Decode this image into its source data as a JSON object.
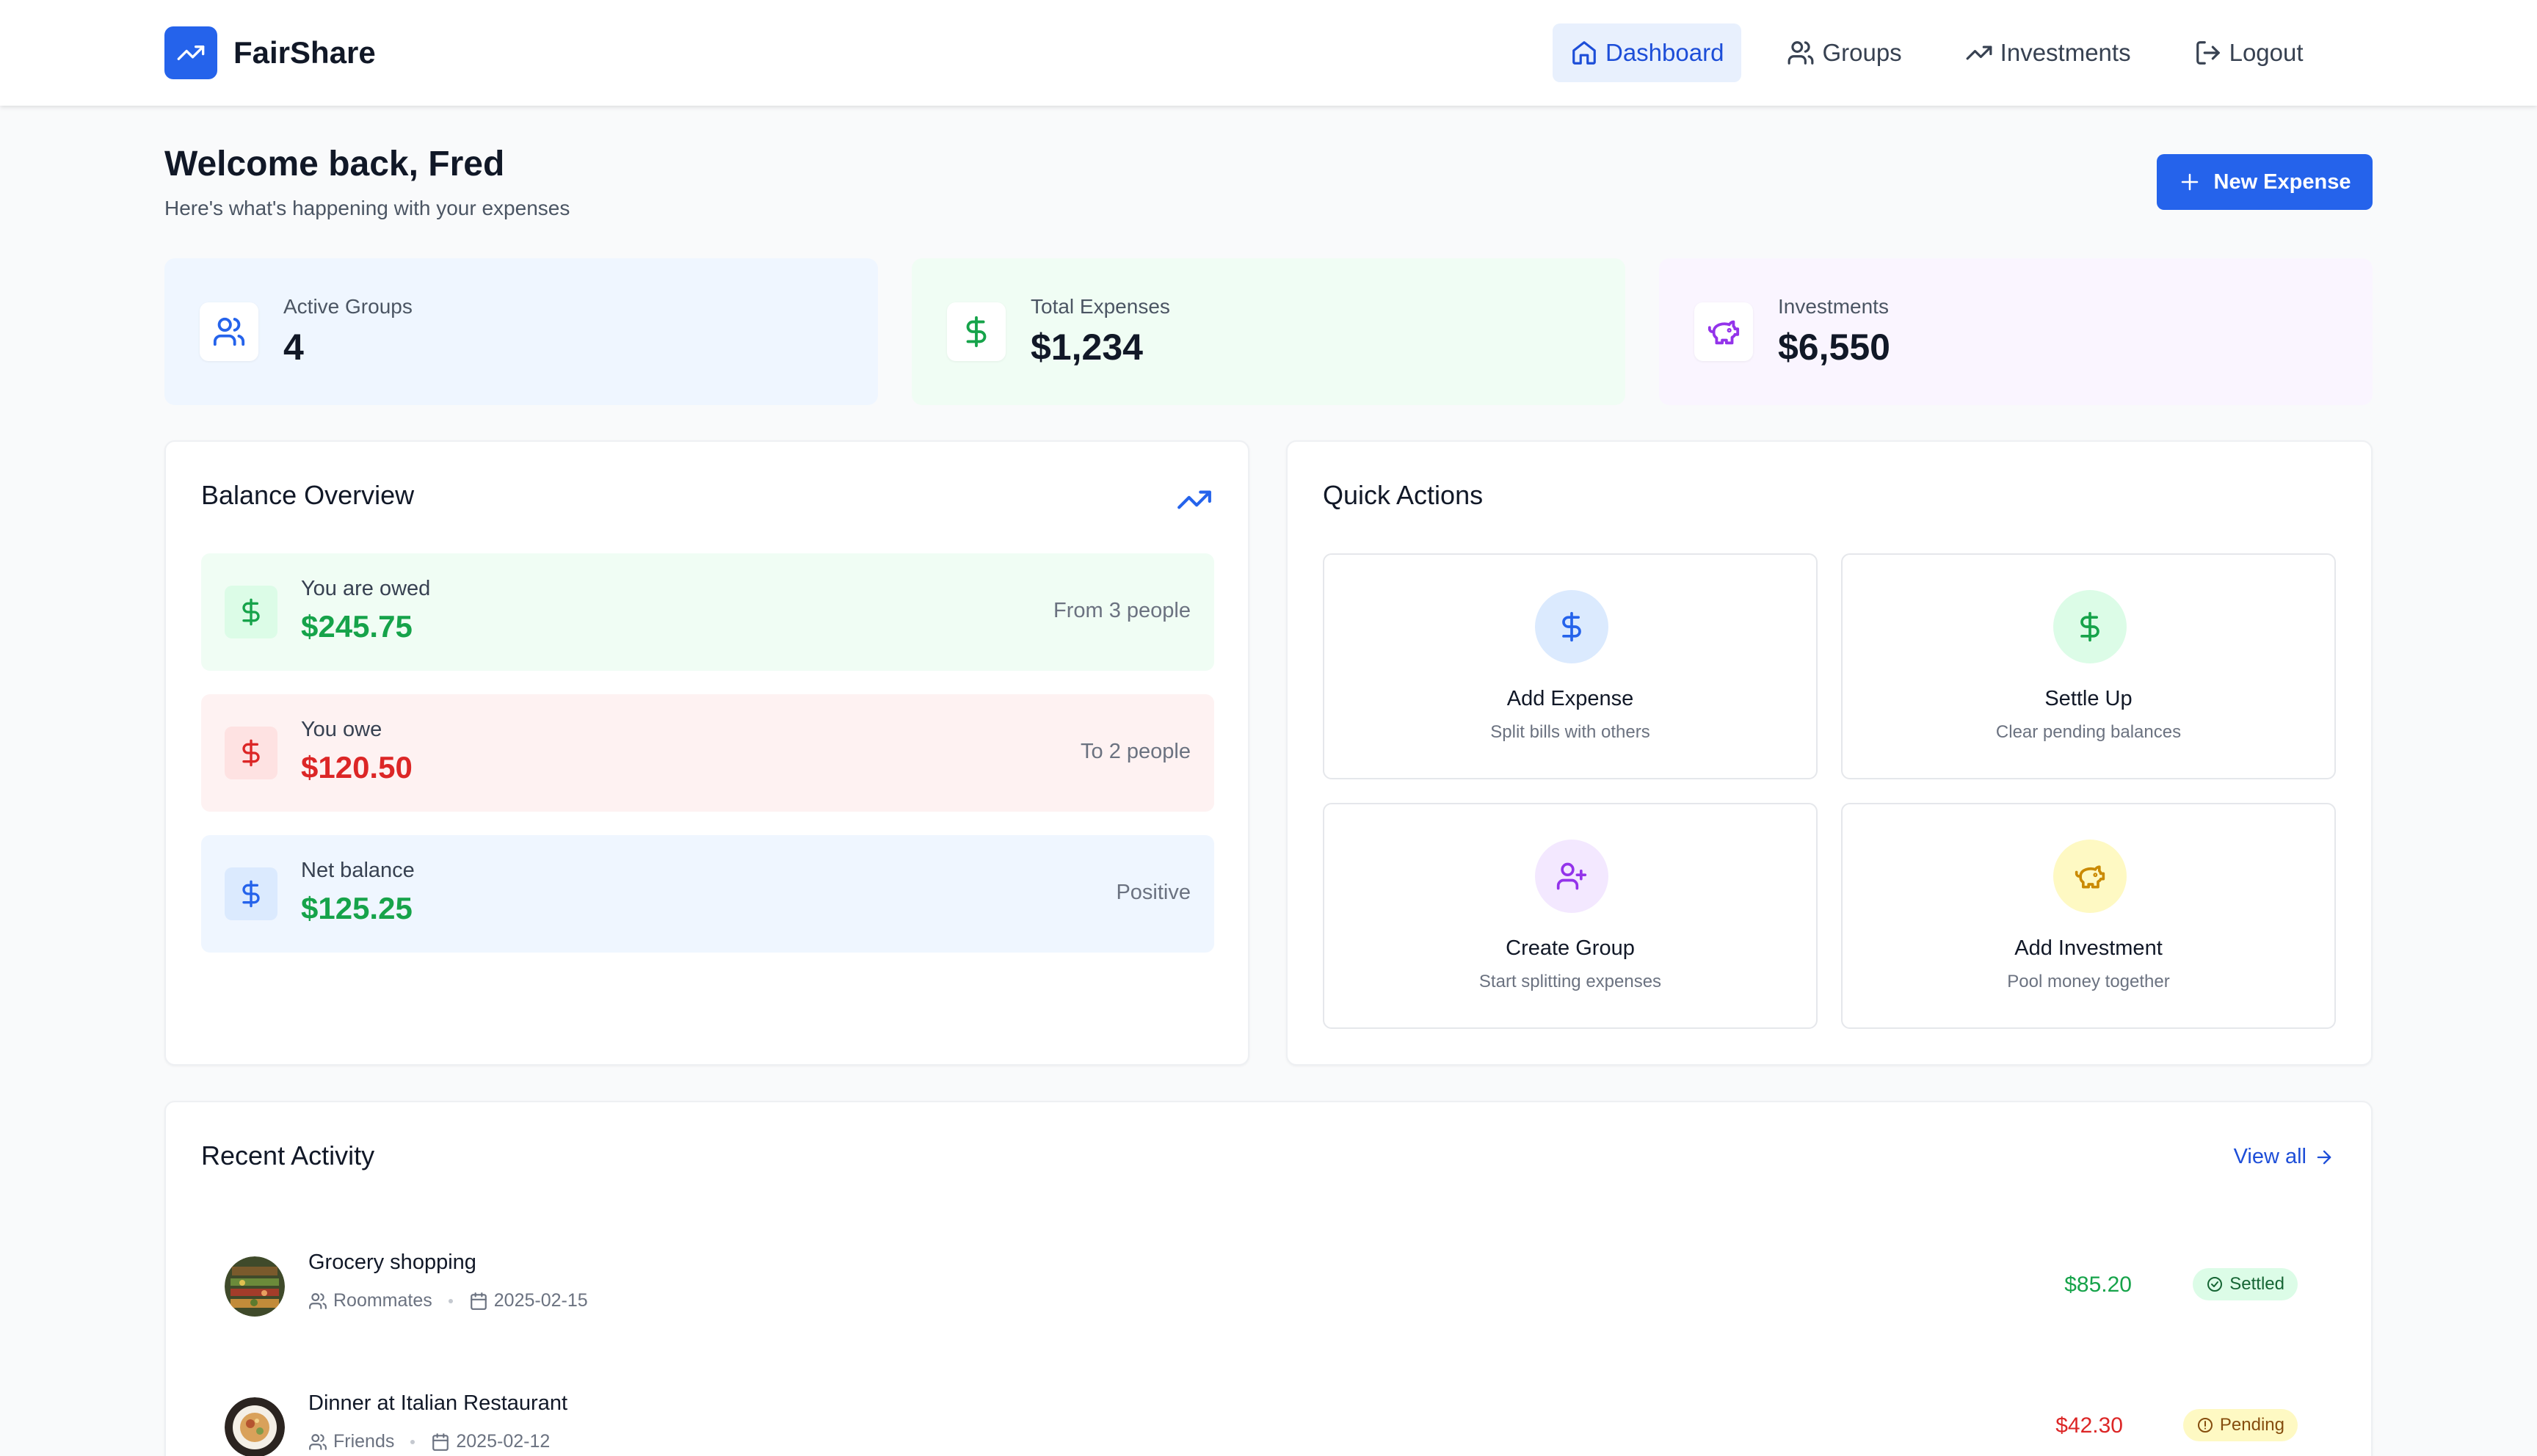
{
  "brand": {
    "name": "FairShare",
    "logo_icon": "trending-up-icon",
    "accent": "#2563eb"
  },
  "nav": [
    {
      "label": "Dashboard",
      "icon": "home-icon",
      "active": true
    },
    {
      "label": "Groups",
      "icon": "users-icon",
      "active": false
    },
    {
      "label": "Investments",
      "icon": "trending-up-icon",
      "active": false
    },
    {
      "label": "Logout",
      "icon": "logout-icon",
      "active": false
    }
  ],
  "header": {
    "title": "Welcome back, Fred",
    "subtitle": "Here's what's happening with your expenses",
    "new_expense_label": "New Expense"
  },
  "stats": [
    {
      "label": "Active Groups",
      "value": "4",
      "icon": "users-icon",
      "bg": "#eff6ff",
      "icon_color": "#2563eb"
    },
    {
      "label": "Total Expenses",
      "value": "$1,234",
      "icon": "dollar-icon",
      "bg": "#f0fdf4",
      "icon_color": "#16a34a"
    },
    {
      "label": "Investments",
      "value": "$6,550",
      "icon": "piggy-bank-icon",
      "bg": "#faf5ff",
      "icon_color": "#9333ea"
    }
  ],
  "balance": {
    "title": "Balance Overview",
    "rows": [
      {
        "label": "You are owed",
        "amount": "$245.75",
        "note": "From 3 people",
        "bg": "#f0fdf4",
        "amount_color": "#16a34a"
      },
      {
        "label": "You owe",
        "amount": "$120.50",
        "note": "To 2 people",
        "bg": "#fef2f2",
        "amount_color": "#dc2626"
      },
      {
        "label": "Net balance",
        "amount": "$125.25",
        "note": "Positive",
        "bg": "#eff6ff",
        "amount_color": "#16a34a"
      }
    ]
  },
  "quick_actions": {
    "title": "Quick Actions",
    "items": [
      {
        "title": "Add Expense",
        "desc": "Split bills with others",
        "icon": "dollar-icon"
      },
      {
        "title": "Settle Up",
        "desc": "Clear pending balances",
        "icon": "dollar-icon"
      },
      {
        "title": "Create Group",
        "desc": "Start splitting expenses",
        "icon": "user-plus-icon"
      },
      {
        "title": "Add Investment",
        "desc": "Pool money together",
        "icon": "piggy-bank-icon"
      }
    ]
  },
  "activity": {
    "title": "Recent Activity",
    "view_all": "View all",
    "items": [
      {
        "title": "Grocery shopping",
        "group": "Roommates",
        "date": "2025-02-15",
        "amount": "$85.20",
        "status": "Settled",
        "status_color": "#16a34a"
      },
      {
        "title": "Dinner at Italian Restaurant",
        "group": "Friends",
        "date": "2025-02-12",
        "amount": "$42.30",
        "status": "Pending",
        "status_color": "#ca8a04"
      }
    ]
  }
}
